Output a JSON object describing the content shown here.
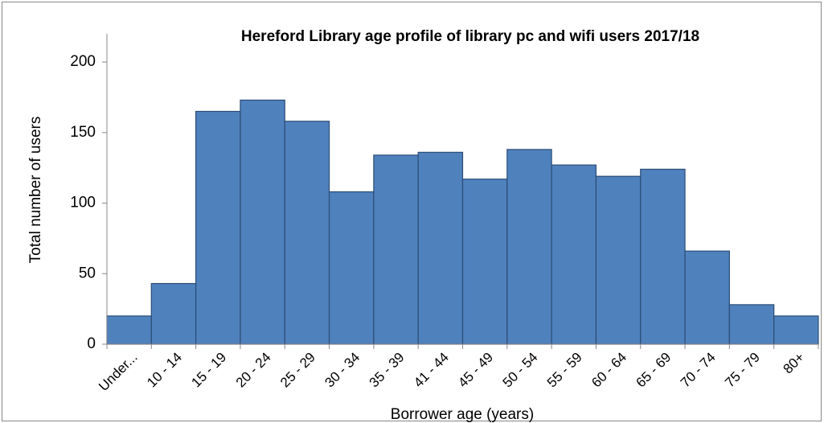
{
  "chart_data": {
    "type": "bar",
    "title": "Hereford Library age profile of library pc and wifi users 2017/18",
    "x_label": "Borrower age (years)",
    "y_label": "Total number of users",
    "categories": [
      "Under...",
      "10 - 14",
      "15 - 19",
      "20 - 24",
      "25 - 29",
      "30 - 34",
      "35 - 39",
      "41 - 44",
      "45 - 49",
      "50 - 54",
      "55 - 59",
      "60 - 64",
      "65 - 69",
      "70 - 74",
      "75 - 79",
      "80+"
    ],
    "values": [
      20,
      43,
      165,
      173,
      158,
      108,
      134,
      136,
      117,
      138,
      127,
      119,
      124,
      66,
      28,
      20
    ],
    "color": "#4f81bd",
    "ylim": [
      0,
      220
    ],
    "yticks": [
      0,
      50,
      100,
      150,
      200
    ],
    "grid": false
  }
}
